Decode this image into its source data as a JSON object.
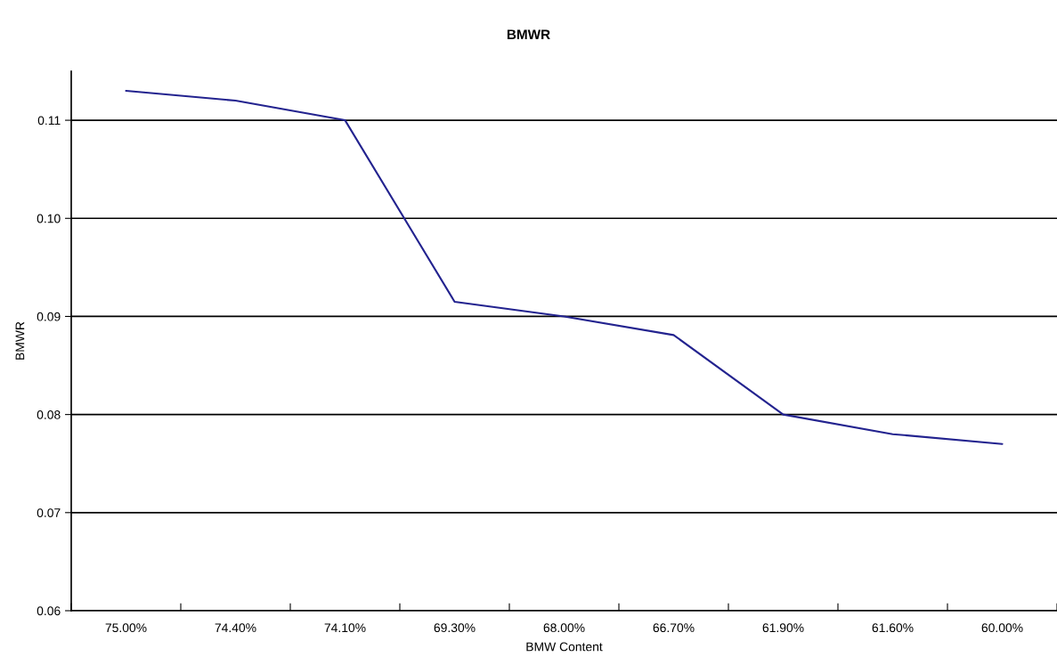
{
  "chart_data": {
    "type": "line",
    "title": "BMWR",
    "xlabel": "BMW Content",
    "ylabel": "BMWR",
    "categories": [
      "75.00%",
      "74.40%",
      "74.10%",
      "69.30%",
      "68.00%",
      "66.70%",
      "61.90%",
      "61.60%",
      "60.00%"
    ],
    "series": [
      {
        "color": "#23238f",
        "values": [
          0.113,
          0.112,
          0.11,
          0.0915,
          0.09,
          0.0881,
          0.08,
          0.078,
          0.077
        ]
      }
    ],
    "ylim": [
      0.06,
      0.115
    ],
    "yticks": [
      {
        "value": 0.06,
        "label": "0.06"
      },
      {
        "value": 0.07,
        "label": "0.07"
      },
      {
        "value": 0.08,
        "label": "0.08"
      },
      {
        "value": 0.09,
        "label": "0.09"
      },
      {
        "value": 0.1,
        "label": "0.10"
      },
      {
        "value": 0.11,
        "label": "0.11"
      }
    ],
    "grid": "y",
    "marker": "none",
    "line_style": "solid"
  }
}
